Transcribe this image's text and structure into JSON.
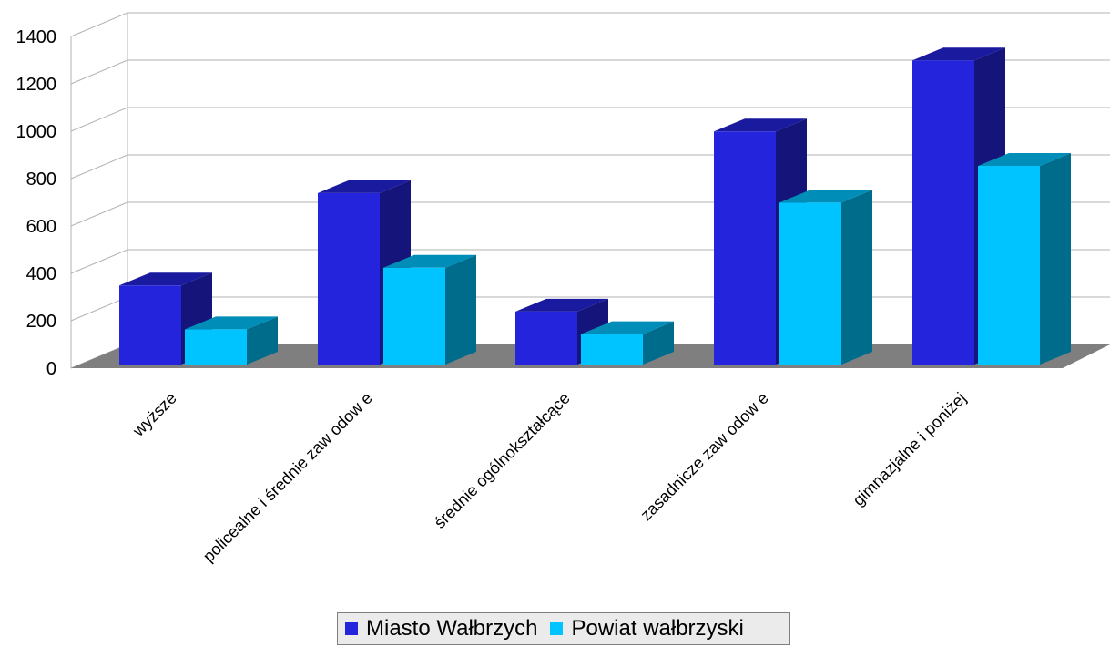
{
  "chart_data": {
    "type": "bar",
    "title": "",
    "xlabel": "",
    "ylabel": "",
    "ylim": [
      0,
      1400
    ],
    "y_ticks": [
      "0",
      "200",
      "400",
      "600",
      "800",
      "1000",
      "1200",
      "1400"
    ],
    "categories": [
      "wyższe",
      "policealne i średnie zaw odow e",
      "średnie ogólnokształcące",
      "zasadnicze zaw odow e",
      "gimnazjalne i poniżej"
    ],
    "series": [
      {
        "name": "Miasto Wałbrzych",
        "values": [
          395,
          785,
          285,
          1045,
          1345
        ],
        "color": "#2424dd"
      },
      {
        "name": "Powiat wałbrzyski",
        "values": [
          210,
          470,
          190,
          745,
          900
        ],
        "color": "#00c4ff"
      }
    ],
    "bar_style": "3d",
    "grid": true,
    "legend_position": "bottom"
  }
}
